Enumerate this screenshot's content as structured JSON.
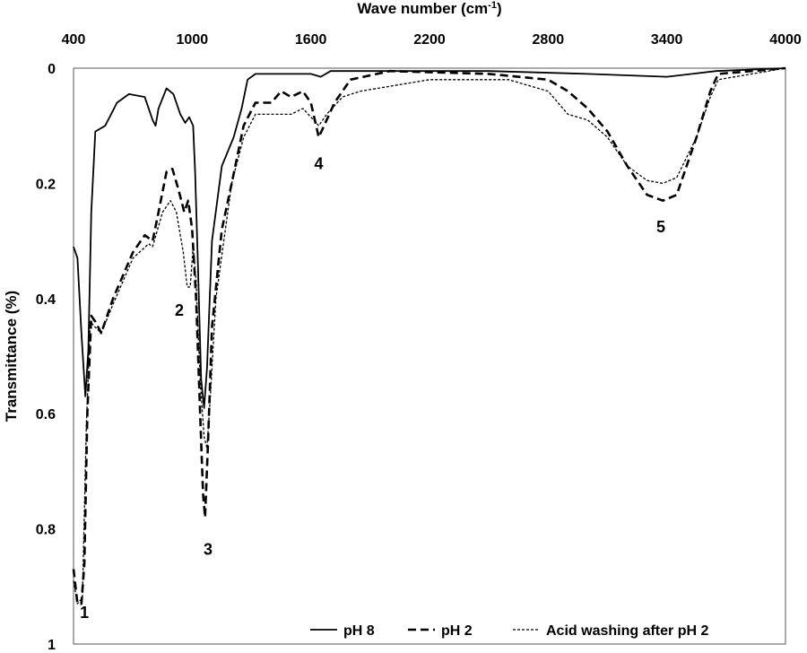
{
  "chart_data": {
    "type": "line",
    "xlabel_parts": {
      "main": "Wave number (cm",
      "sup": "-1",
      "end": ")"
    },
    "ylabel": "Transmittance  (%)",
    "x_ticks": [
      "400",
      "1000",
      "1600",
      "2200",
      "2800",
      "3400",
      "4000"
    ],
    "y_ticks": [
      "0",
      "0.2",
      "0.4",
      "0.6",
      "0.8",
      "1"
    ],
    "xlim": [
      400,
      4000
    ],
    "ylim": [
      0,
      1
    ],
    "y_inverted": true,
    "grid": false,
    "legend_position": "bottom-right",
    "series": [
      {
        "name": "pH 8",
        "style": "solid",
        "points": [
          [
            400,
            0.31
          ],
          [
            420,
            0.33
          ],
          [
            440,
            0.46
          ],
          [
            460,
            0.57
          ],
          [
            475,
            0.49
          ],
          [
            490,
            0.25
          ],
          [
            510,
            0.11
          ],
          [
            560,
            0.1
          ],
          [
            620,
            0.06
          ],
          [
            680,
            0.045
          ],
          [
            760,
            0.05
          ],
          [
            800,
            0.09
          ],
          [
            815,
            0.1
          ],
          [
            830,
            0.07
          ],
          [
            870,
            0.035
          ],
          [
            905,
            0.045
          ],
          [
            940,
            0.08
          ],
          [
            965,
            0.095
          ],
          [
            985,
            0.085
          ],
          [
            1005,
            0.1
          ],
          [
            1015,
            0.18
          ],
          [
            1030,
            0.35
          ],
          [
            1045,
            0.54
          ],
          [
            1060,
            0.59
          ],
          [
            1075,
            0.52
          ],
          [
            1100,
            0.3
          ],
          [
            1150,
            0.17
          ],
          [
            1210,
            0.12
          ],
          [
            1250,
            0.07
          ],
          [
            1280,
            0.02
          ],
          [
            1320,
            0.01
          ],
          [
            1600,
            0.01
          ],
          [
            1650,
            0.015
          ],
          [
            1700,
            0.005
          ],
          [
            2000,
            0.005
          ],
          [
            2500,
            0.005
          ],
          [
            3000,
            0.01
          ],
          [
            3400,
            0.015
          ],
          [
            3650,
            0.005
          ],
          [
            4000,
            0
          ]
        ]
      },
      {
        "name": "pH 2",
        "style": "dashed",
        "points": [
          [
            400,
            0.87
          ],
          [
            420,
            0.93
          ],
          [
            440,
            0.93
          ],
          [
            455,
            0.86
          ],
          [
            470,
            0.6
          ],
          [
            490,
            0.43
          ],
          [
            510,
            0.44
          ],
          [
            540,
            0.46
          ],
          [
            600,
            0.4
          ],
          [
            700,
            0.32
          ],
          [
            760,
            0.29
          ],
          [
            800,
            0.3
          ],
          [
            830,
            0.25
          ],
          [
            870,
            0.18
          ],
          [
            900,
            0.175
          ],
          [
            930,
            0.21
          ],
          [
            960,
            0.25
          ],
          [
            980,
            0.23
          ],
          [
            1000,
            0.28
          ],
          [
            1020,
            0.4
          ],
          [
            1040,
            0.6
          ],
          [
            1055,
            0.74
          ],
          [
            1065,
            0.78
          ],
          [
            1080,
            0.65
          ],
          [
            1100,
            0.45
          ],
          [
            1150,
            0.28
          ],
          [
            1200,
            0.2
          ],
          [
            1260,
            0.1
          ],
          [
            1320,
            0.06
          ],
          [
            1400,
            0.06
          ],
          [
            1450,
            0.04
          ],
          [
            1500,
            0.05
          ],
          [
            1560,
            0.04
          ],
          [
            1600,
            0.06
          ],
          [
            1640,
            0.12
          ],
          [
            1680,
            0.09
          ],
          [
            1720,
            0.06
          ],
          [
            1800,
            0.02
          ],
          [
            2000,
            0.005
          ],
          [
            2500,
            0.01
          ],
          [
            2800,
            0.02
          ],
          [
            2900,
            0.04
          ],
          [
            3000,
            0.07
          ],
          [
            3100,
            0.11
          ],
          [
            3200,
            0.17
          ],
          [
            3300,
            0.22
          ],
          [
            3380,
            0.23
          ],
          [
            3450,
            0.22
          ],
          [
            3550,
            0.12
          ],
          [
            3620,
            0.04
          ],
          [
            3660,
            0.01
          ],
          [
            4000,
            0
          ]
        ]
      },
      {
        "name": "Acid washing after pH 2",
        "style": "dotted",
        "points": [
          [
            400,
            0.89
          ],
          [
            420,
            0.93
          ],
          [
            445,
            0.92
          ],
          [
            465,
            0.62
          ],
          [
            485,
            0.44
          ],
          [
            510,
            0.45
          ],
          [
            540,
            0.46
          ],
          [
            600,
            0.41
          ],
          [
            700,
            0.33
          ],
          [
            780,
            0.305
          ],
          [
            800,
            0.31
          ],
          [
            850,
            0.25
          ],
          [
            890,
            0.23
          ],
          [
            920,
            0.25
          ],
          [
            955,
            0.32
          ],
          [
            975,
            0.38
          ],
          [
            990,
            0.38
          ],
          [
            1005,
            0.31
          ],
          [
            1020,
            0.37
          ],
          [
            1040,
            0.54
          ],
          [
            1060,
            0.64
          ],
          [
            1075,
            0.66
          ],
          [
            1090,
            0.58
          ],
          [
            1120,
            0.4
          ],
          [
            1200,
            0.2
          ],
          [
            1260,
            0.12
          ],
          [
            1320,
            0.08
          ],
          [
            1400,
            0.08
          ],
          [
            1500,
            0.08
          ],
          [
            1560,
            0.07
          ],
          [
            1640,
            0.1
          ],
          [
            1680,
            0.08
          ],
          [
            1760,
            0.05
          ],
          [
            1850,
            0.04
          ],
          [
            2200,
            0.02
          ],
          [
            2600,
            0.02
          ],
          [
            2800,
            0.04
          ],
          [
            2900,
            0.08
          ],
          [
            3000,
            0.09
          ],
          [
            3100,
            0.12
          ],
          [
            3200,
            0.17
          ],
          [
            3300,
            0.195
          ],
          [
            3380,
            0.2
          ],
          [
            3450,
            0.19
          ],
          [
            3550,
            0.12
          ],
          [
            3620,
            0.05
          ],
          [
            3660,
            0.02
          ],
          [
            4000,
            0
          ]
        ]
      }
    ],
    "annotations": [
      {
        "text": "1",
        "x": 455,
        "y": 0.955
      },
      {
        "text": "2",
        "x": 935,
        "y": 0.43
      },
      {
        "text": "3",
        "x": 1080,
        "y": 0.845
      },
      {
        "text": "4",
        "x": 1640,
        "y": 0.175
      },
      {
        "text": "5",
        "x": 3370,
        "y": 0.285
      }
    ]
  }
}
